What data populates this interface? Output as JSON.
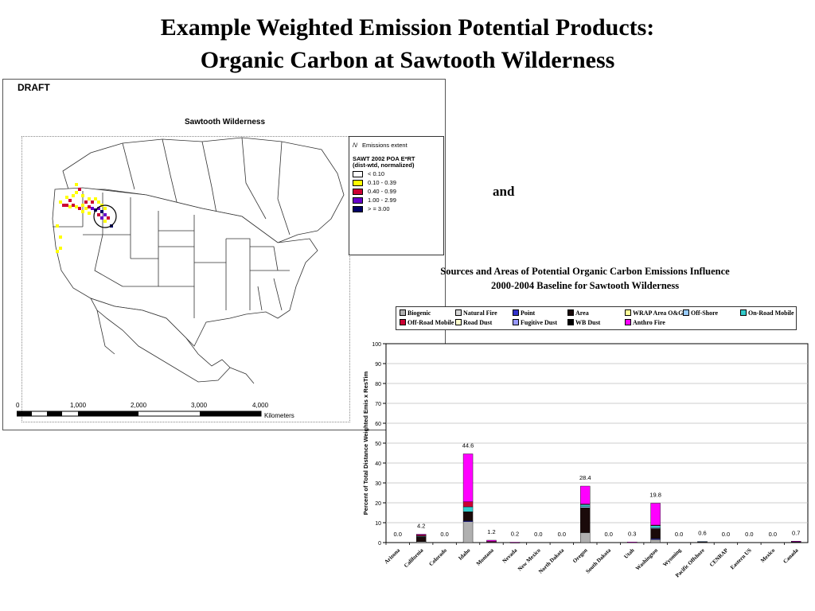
{
  "slide": {
    "title_line1": "Example Weighted Emission Potential Products:",
    "title_line2": "Organic Carbon at Sawtooth Wilderness",
    "connector": "and"
  },
  "map": {
    "draft_label": "DRAFT",
    "title": "Sawtooth Wilderness",
    "legend": {
      "extent_label": "Emissions extent",
      "heading1": "SAWT 2002 POA E*RT",
      "heading2": "(dist-wtd, normalized)",
      "classes": [
        {
          "label": "< 0.10",
          "color": "#ffffff"
        },
        {
          "label": "0.10 - 0.39",
          "color": "#ffff00"
        },
        {
          "label": "0.40 - 0.99",
          "color": "#cc0033"
        },
        {
          "label": "1.00 - 2.99",
          "color": "#6600cc"
        },
        {
          "label": "> = 3.00",
          "color": "#000066"
        }
      ]
    },
    "scale": {
      "ticks": [
        "0",
        "1,000",
        "2,000",
        "3,000",
        "4,000"
      ],
      "unit": "Kilometers"
    }
  },
  "chart_data": {
    "type": "bar",
    "stacked": true,
    "title": "Sources and Areas of Potential Organic Carbon Emissions Influence",
    "subtitle": "2000-2004 Baseline for Sawtooth Wilderness",
    "ylabel": "Percent of Total Distance Weighted Emis x ResTim",
    "xlabel": "",
    "ylim": [
      0,
      100
    ],
    "yticks": [
      0,
      10,
      20,
      30,
      40,
      50,
      60,
      70,
      80,
      90,
      100
    ],
    "grid": true,
    "legend_position": "top",
    "categories": [
      "Arizona",
      "California",
      "Colorado",
      "Idaho",
      "Montana",
      "Nevada",
      "New Mexico",
      "North Dakota",
      "Oregon",
      "South Dakota",
      "Utah",
      "Washington",
      "Wyoming",
      "Pacific Offshore",
      "CENRAP",
      "Eastern US",
      "Mexico",
      "Canada"
    ],
    "totals": [
      "0.0",
      "4.2",
      "0.0",
      "44.6",
      "1.2",
      "0.2",
      "0.0",
      "0.0",
      "28.4",
      "0.0",
      "0.3",
      "19.8",
      "0.0",
      "0.6",
      "0.0",
      "0.0",
      "0.0",
      "0.7"
    ],
    "series": [
      {
        "name": "Biogenic",
        "color": "#b0b0b0",
        "values": [
          0,
          0.5,
          0,
          10.5,
          0.2,
          0,
          0,
          0,
          5.0,
          0,
          0,
          1.5,
          0,
          0,
          0,
          0,
          0,
          0
        ]
      },
      {
        "name": "Natural Fire",
        "color": "#d8d8d8",
        "values": [
          0,
          0,
          0,
          0,
          0,
          0,
          0,
          0,
          0,
          0,
          0,
          0,
          0,
          0,
          0,
          0,
          0,
          0
        ]
      },
      {
        "name": "Point",
        "color": "#3333cc",
        "values": [
          0,
          0,
          0,
          0.5,
          0,
          0,
          0,
          0,
          0,
          0,
          0,
          0.5,
          0,
          0,
          0,
          0,
          0,
          0
        ]
      },
      {
        "name": "Area",
        "color": "#1a0a0a",
        "values": [
          0,
          2.5,
          0,
          4.5,
          0.3,
          0.1,
          0,
          0,
          12.5,
          0,
          0.2,
          5.0,
          0,
          0.3,
          0,
          0,
          0,
          0.4
        ]
      },
      {
        "name": "WRAP Area O&G",
        "color": "#ffff99",
        "values": [
          0,
          0,
          0,
          0,
          0,
          0,
          0,
          0,
          0,
          0,
          0,
          0,
          0,
          0,
          0,
          0,
          0,
          0
        ]
      },
      {
        "name": "Off-Shore",
        "color": "#99ccff",
        "values": [
          0,
          0,
          0,
          0,
          0,
          0,
          0,
          0,
          0.6,
          0,
          0,
          0.5,
          0,
          0.3,
          0,
          0,
          0,
          0
        ]
      },
      {
        "name": "On-Road Mobile",
        "color": "#33cccc",
        "values": [
          0,
          0.3,
          0,
          2.5,
          0,
          0,
          0,
          0,
          1.0,
          0,
          0,
          1.0,
          0,
          0,
          0,
          0,
          0,
          0.1
        ]
      },
      {
        "name": "Off-Road Mobile",
        "color": "#cc0033",
        "values": [
          0,
          0.5,
          0,
          2.5,
          0.1,
          0,
          0,
          0,
          0.3,
          0,
          0,
          0.3,
          0,
          0,
          0,
          0,
          0,
          0.1
        ]
      },
      {
        "name": "Road Dust",
        "color": "#ffffcc",
        "values": [
          0,
          0,
          0,
          0,
          0,
          0,
          0,
          0,
          0,
          0,
          0,
          0,
          0,
          0,
          0,
          0,
          0,
          0
        ]
      },
      {
        "name": "Fugitive Dust",
        "color": "#9999ff",
        "values": [
          0,
          0,
          0,
          0,
          0,
          0,
          0,
          0,
          0,
          0,
          0,
          0,
          0,
          0,
          0,
          0,
          0,
          0
        ]
      },
      {
        "name": "WB Dust",
        "color": "#000000",
        "values": [
          0,
          0,
          0,
          0,
          0,
          0,
          0,
          0,
          0,
          0,
          0,
          0,
          0,
          0,
          0,
          0,
          0,
          0
        ]
      },
      {
        "name": "Anthro Fire",
        "color": "#ff00ff",
        "values": [
          0,
          0.4,
          0,
          24.1,
          0.6,
          0.1,
          0,
          0,
          9.0,
          0,
          0.1,
          11.0,
          0,
          0,
          0,
          0,
          0,
          0.1
        ]
      }
    ]
  }
}
